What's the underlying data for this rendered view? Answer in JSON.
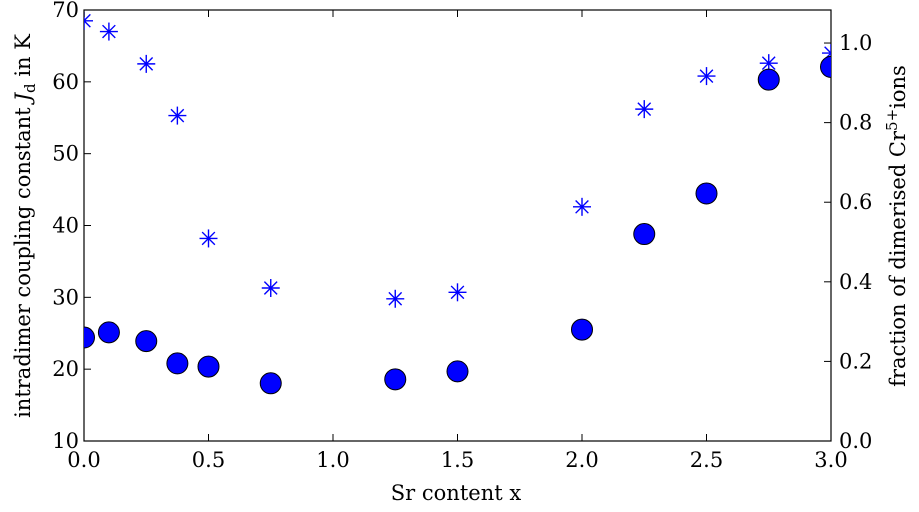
{
  "chart_data": {
    "type": "scatter",
    "title": "",
    "xlabel": "Sr content x",
    "ylabel_left": "intradimer coupling constant",
    "ylabel_left_symbol": "J",
    "ylabel_left_subscript": "d",
    "ylabel_left_suffix": " in K",
    "ylabel_right_prefix": "fraction of dimerised Cr",
    "ylabel_right_superscript": "5+",
    "ylabel_right_suffix": "ions",
    "xlim": [
      0.0,
      3.0
    ],
    "ylim_left": [
      10,
      70
    ],
    "ylim_right": [
      0.0,
      1.083
    ],
    "xticks": [
      "0.0",
      "0.5",
      "1.0",
      "1.5",
      "2.0",
      "2.5",
      "3.0"
    ],
    "yticks_left": [
      "10",
      "20",
      "30",
      "40",
      "50",
      "60",
      "70"
    ],
    "yticks_right": [
      "0.0",
      "0.2",
      "0.4",
      "0.6",
      "0.8",
      "1.0"
    ],
    "colors": {
      "marker": "#0000ff",
      "marker_edge": "#000000"
    },
    "series": [
      {
        "marker": "star",
        "axis": "left",
        "x": [
          0.0,
          0.1,
          0.25,
          0.375,
          0.5,
          0.75,
          1.25,
          1.5,
          2.0,
          2.25,
          2.5,
          2.75,
          3.0
        ],
        "y": [
          68.5,
          67.0,
          62.5,
          55.3,
          38.2,
          31.3,
          29.8,
          30.7,
          42.6,
          56.2,
          60.8,
          62.6,
          64.0
        ]
      },
      {
        "marker": "circle",
        "axis": "right",
        "x": [
          0.0,
          0.1,
          0.25,
          0.375,
          0.5,
          0.75,
          1.25,
          1.5,
          2.0,
          2.25,
          2.5,
          2.75,
          3.0
        ],
        "y": [
          0.26,
          0.273,
          0.251,
          0.195,
          0.187,
          0.145,
          0.155,
          0.175,
          0.28,
          0.52,
          0.622,
          0.908,
          0.94
        ]
      }
    ]
  }
}
